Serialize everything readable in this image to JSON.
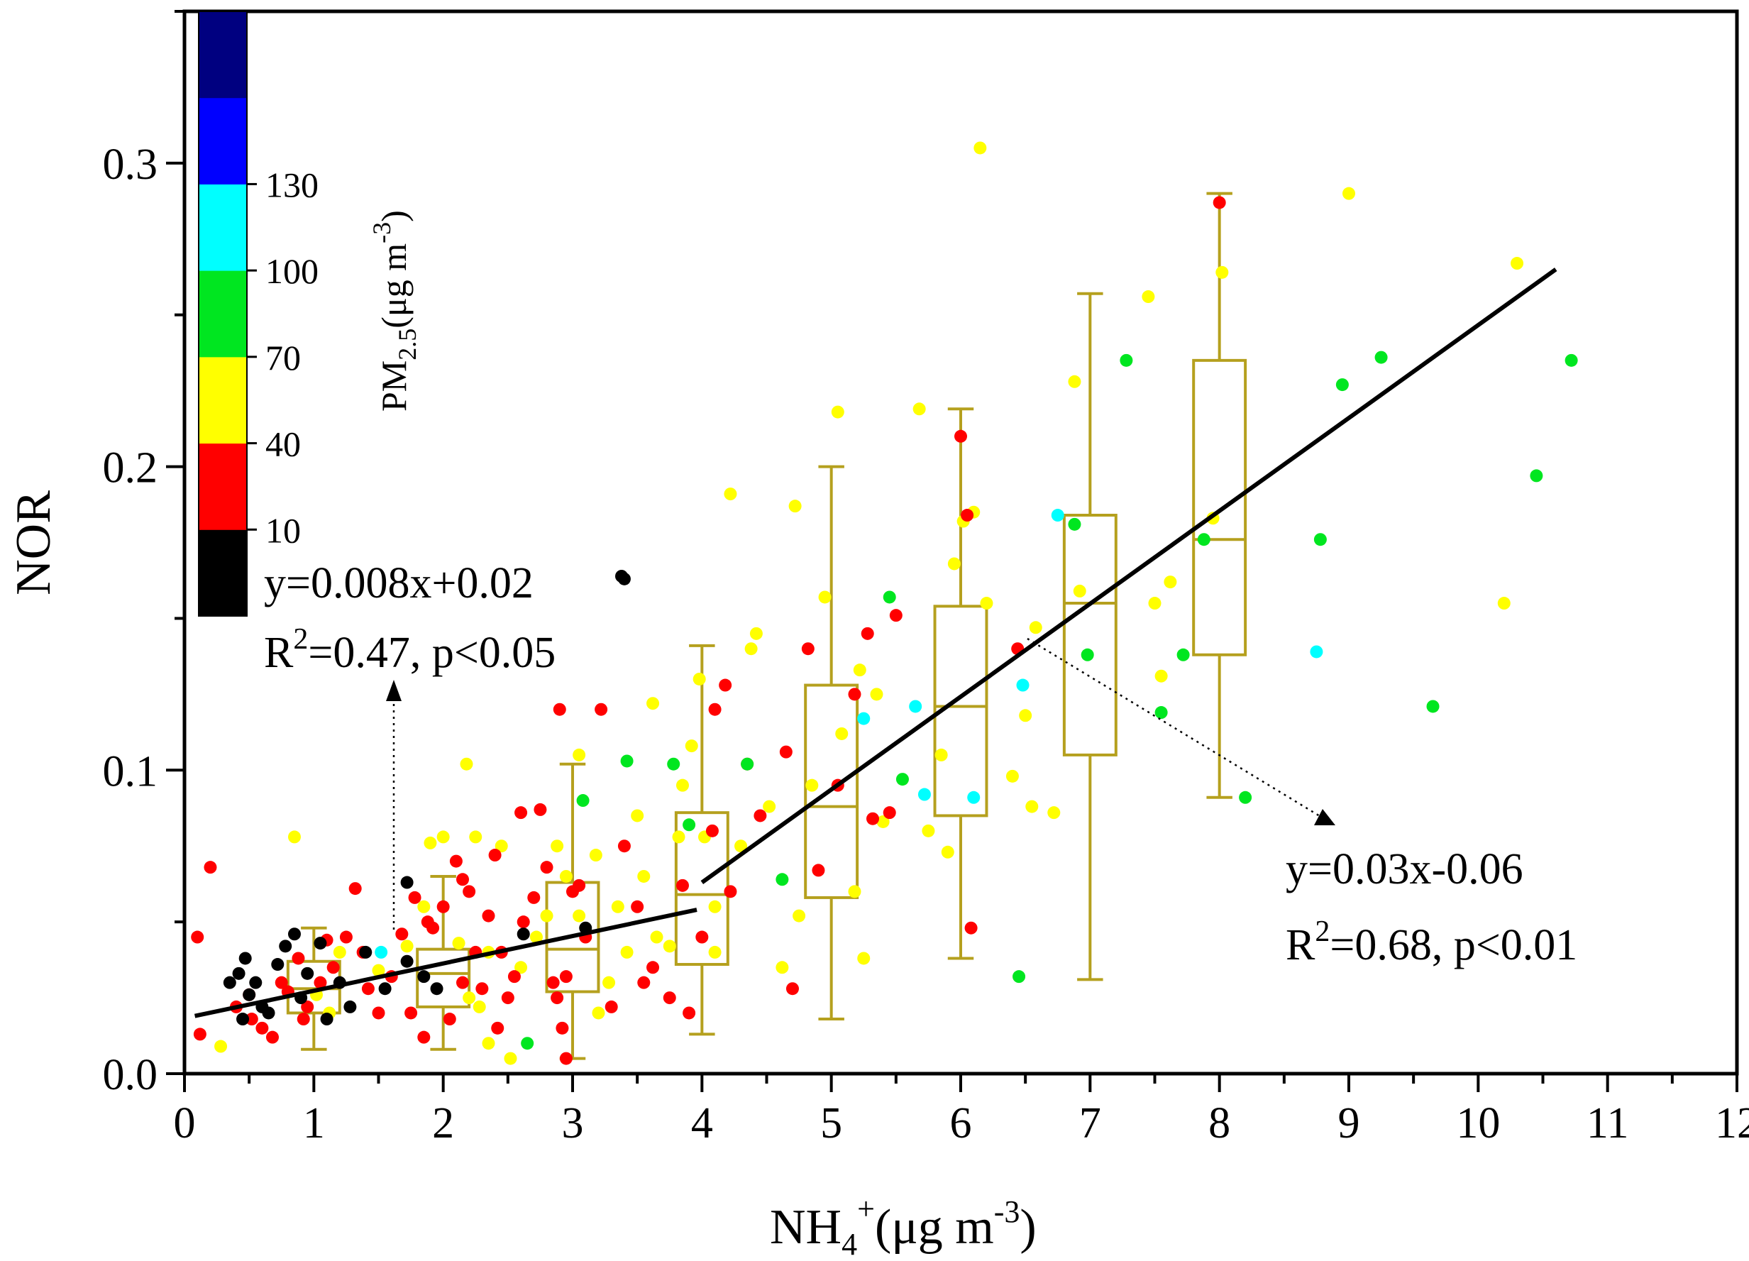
{
  "chart_data": {
    "type": "scatter",
    "xlabel": {
      "main": "NH",
      "sub": "4",
      "sup": "+",
      "unit": "(μg m",
      "unit_sup": "-3",
      "close": ")"
    },
    "ylabel": "NOR",
    "xlim": [
      0,
      12
    ],
    "ylim": [
      0,
      0.35
    ],
    "x_ticks": [
      0,
      1,
      2,
      3,
      4,
      5,
      6,
      7,
      8,
      9,
      10,
      11,
      12
    ],
    "x_tick_labels": [
      "0",
      "1",
      "2",
      "3",
      "4",
      "5",
      "6",
      "7",
      "8",
      "9",
      "10",
      "11",
      "12"
    ],
    "y_ticks": [
      0,
      0.1,
      0.2,
      0.3
    ],
    "y_tick_labels": [
      "0.0",
      "0.1",
      "0.2",
      "0.3"
    ],
    "colorbar": {
      "title_main": "PM",
      "title_sub": "2.5",
      "title_unit": "(μg m",
      "title_unit_sup": "-3",
      "title_close": ")",
      "labels": [
        "10",
        "40",
        "70",
        "100",
        "130"
      ],
      "bands": [
        {
          "color": "#000000"
        },
        {
          "color": "#ff0000"
        },
        {
          "color": "#ffff00"
        },
        {
          "color": "#00e620"
        },
        {
          "color": "#00ffff"
        },
        {
          "color": "#0000ff"
        },
        {
          "color": "#000080"
        }
      ]
    },
    "box_color": "#b5a01e",
    "boxes": [
      {
        "x": 1,
        "whisker_low": 0.008,
        "q1": 0.02,
        "median": 0.028,
        "q3": 0.037,
        "whisker_high": 0.048
      },
      {
        "x": 2,
        "whisker_low": 0.008,
        "q1": 0.022,
        "median": 0.033,
        "q3": 0.041,
        "whisker_high": 0.065
      },
      {
        "x": 3,
        "whisker_low": 0.005,
        "q1": 0.027,
        "median": 0.041,
        "q3": 0.063,
        "whisker_high": 0.102
      },
      {
        "x": 4,
        "whisker_low": 0.013,
        "q1": 0.036,
        "median": 0.059,
        "q3": 0.086,
        "whisker_high": 0.141
      },
      {
        "x": 5,
        "whisker_low": 0.018,
        "q1": 0.058,
        "median": 0.088,
        "q3": 0.128,
        "whisker_high": 0.2
      },
      {
        "x": 6,
        "whisker_low": 0.038,
        "q1": 0.085,
        "median": 0.121,
        "q3": 0.154,
        "whisker_high": 0.219
      },
      {
        "x": 7,
        "whisker_low": 0.031,
        "q1": 0.105,
        "median": 0.155,
        "q3": 0.184,
        "whisker_high": 0.257
      },
      {
        "x": 8,
        "whisker_low": 0.091,
        "q1": 0.138,
        "median": 0.176,
        "q3": 0.235,
        "whisker_high": 0.29
      }
    ],
    "fit_lines": [
      {
        "x": [
          0.08,
          3.96
        ],
        "y": [
          0.019,
          0.054
        ],
        "equation": "y=0.008x+0.02",
        "r2_prefix": "R",
        "r2_sup": "2",
        "r2_text": "=0.47, p<0.05"
      },
      {
        "x": [
          4.0,
          10.6
        ],
        "y": [
          0.063,
          0.265
        ],
        "equation": "y=0.03x-0.06",
        "r2_prefix": "R",
        "r2_sup": "2",
        "r2_text": "=0.68, p<0.01"
      }
    ],
    "points": {
      "black": [
        [
          0.35,
          0.03
        ],
        [
          0.42,
          0.033
        ],
        [
          0.47,
          0.038
        ],
        [
          0.5,
          0.026
        ],
        [
          0.45,
          0.018
        ],
        [
          0.55,
          0.03
        ],
        [
          0.6,
          0.022
        ],
        [
          0.72,
          0.036
        ],
        [
          0.78,
          0.042
        ],
        [
          0.85,
          0.046
        ],
        [
          0.9,
          0.025
        ],
        [
          1.05,
          0.043
        ],
        [
          1.1,
          0.018
        ],
        [
          1.2,
          0.03
        ],
        [
          1.28,
          0.022
        ],
        [
          1.4,
          0.04
        ],
        [
          1.55,
          0.028
        ],
        [
          1.72,
          0.037
        ],
        [
          1.85,
          0.032
        ],
        [
          1.95,
          0.028
        ],
        [
          1.72,
          0.063
        ],
        [
          2.62,
          0.046
        ],
        [
          3.1,
          0.048
        ],
        [
          0.65,
          0.02
        ],
        [
          0.95,
          0.033
        ]
      ],
      "red": [
        [
          0.1,
          0.045
        ],
        [
          0.2,
          0.068
        ],
        [
          0.12,
          0.013
        ],
        [
          0.4,
          0.022
        ],
        [
          0.52,
          0.018
        ],
        [
          0.6,
          0.015
        ],
        [
          0.68,
          0.012
        ],
        [
          0.8,
          0.027
        ],
        [
          0.88,
          0.038
        ],
        [
          0.95,
          0.022
        ],
        [
          1.05,
          0.03
        ],
        [
          1.15,
          0.035
        ],
        [
          1.25,
          0.045
        ],
        [
          1.32,
          0.061
        ],
        [
          1.42,
          0.028
        ],
        [
          1.5,
          0.02
        ],
        [
          1.6,
          0.032
        ],
        [
          1.68,
          0.046
        ],
        [
          1.75,
          0.02
        ],
        [
          1.78,
          0.058
        ],
        [
          1.85,
          0.012
        ],
        [
          1.92,
          0.048
        ],
        [
          2.0,
          0.055
        ],
        [
          2.05,
          0.018
        ],
        [
          2.1,
          0.07
        ],
        [
          2.15,
          0.064
        ],
        [
          2.2,
          0.06
        ],
        [
          2.25,
          0.04
        ],
        [
          2.3,
          0.028
        ],
        [
          2.35,
          0.052
        ],
        [
          2.4,
          0.072
        ],
        [
          2.42,
          0.015
        ],
        [
          2.5,
          0.025
        ],
        [
          2.55,
          0.032
        ],
        [
          2.6,
          0.086
        ],
        [
          2.62,
          0.05
        ],
        [
          2.7,
          0.058
        ],
        [
          2.75,
          0.087
        ],
        [
          2.8,
          0.068
        ],
        [
          2.85,
          0.03
        ],
        [
          2.88,
          0.025
        ],
        [
          2.9,
          0.12
        ],
        [
          2.92,
          0.015
        ],
        [
          2.95,
          0.032
        ],
        [
          3.05,
          0.062
        ],
        [
          3.1,
          0.045
        ],
        [
          3.22,
          0.12
        ],
        [
          3.3,
          0.022
        ],
        [
          3.4,
          0.075
        ],
        [
          3.5,
          0.055
        ],
        [
          3.55,
          0.03
        ],
        [
          3.62,
          0.035
        ],
        [
          3.75,
          0.025
        ],
        [
          3.85,
          0.062
        ],
        [
          3.9,
          0.02
        ],
        [
          4.0,
          0.045
        ],
        [
          4.08,
          0.08
        ],
        [
          4.1,
          0.12
        ],
        [
          4.18,
          0.128
        ],
        [
          4.22,
          0.06
        ],
        [
          4.35,
          0.102
        ],
        [
          4.45,
          0.085
        ],
        [
          4.65,
          0.106
        ],
        [
          4.7,
          0.028
        ],
        [
          4.82,
          0.14
        ],
        [
          4.9,
          0.067
        ],
        [
          5.05,
          0.095
        ],
        [
          5.18,
          0.125
        ],
        [
          5.28,
          0.145
        ],
        [
          5.32,
          0.084
        ],
        [
          5.45,
          0.086
        ],
        [
          5.5,
          0.151
        ],
        [
          6.0,
          0.21
        ],
        [
          6.05,
          0.184
        ],
        [
          6.08,
          0.048
        ],
        [
          6.44,
          0.14
        ],
        [
          8.0,
          0.287
        ],
        [
          0.92,
          0.018
        ],
        [
          1.88,
          0.05
        ],
        [
          2.15,
          0.03
        ],
        [
          2.45,
          0.04
        ],
        [
          3.0,
          0.06
        ],
        [
          2.95,
          0.005
        ],
        [
          0.5,
          0.026
        ],
        [
          0.75,
          0.03
        ],
        [
          1.1,
          0.044
        ],
        [
          1.38,
          0.04
        ]
      ],
      "yellow": [
        [
          0.28,
          0.009
        ],
        [
          0.85,
          0.078
        ],
        [
          1.2,
          0.04
        ],
        [
          1.5,
          0.034
        ],
        [
          1.72,
          0.042
        ],
        [
          1.85,
          0.055
        ],
        [
          1.9,
          0.076
        ],
        [
          2.0,
          0.078
        ],
        [
          2.12,
          0.043
        ],
        [
          2.18,
          0.102
        ],
        [
          2.25,
          0.078
        ],
        [
          2.28,
          0.022
        ],
        [
          2.35,
          0.04
        ],
        [
          2.45,
          0.075
        ],
        [
          2.52,
          0.005
        ],
        [
          2.6,
          0.035
        ],
        [
          2.72,
          0.045
        ],
        [
          2.8,
          0.052
        ],
        [
          2.88,
          0.075
        ],
        [
          2.95,
          0.065
        ],
        [
          3.05,
          0.052
        ],
        [
          3.05,
          0.105
        ],
        [
          3.18,
          0.072
        ],
        [
          3.28,
          0.03
        ],
        [
          3.35,
          0.055
        ],
        [
          3.42,
          0.04
        ],
        [
          3.5,
          0.085
        ],
        [
          3.55,
          0.065
        ],
        [
          3.62,
          0.122
        ],
        [
          3.65,
          0.045
        ],
        [
          3.75,
          0.042
        ],
        [
          3.82,
          0.078
        ],
        [
          3.85,
          0.095
        ],
        [
          3.92,
          0.108
        ],
        [
          3.98,
          0.13
        ],
        [
          4.02,
          0.078
        ],
        [
          4.1,
          0.055
        ],
        [
          4.22,
          0.191
        ],
        [
          4.3,
          0.075
        ],
        [
          4.38,
          0.14
        ],
        [
          4.42,
          0.145
        ],
        [
          4.52,
          0.088
        ],
        [
          4.62,
          0.035
        ],
        [
          4.72,
          0.187
        ],
        [
          4.75,
          0.052
        ],
        [
          4.85,
          0.095
        ],
        [
          4.95,
          0.157
        ],
        [
          5.05,
          0.218
        ],
        [
          5.08,
          0.112
        ],
        [
          5.18,
          0.06
        ],
        [
          5.22,
          0.133
        ],
        [
          5.25,
          0.038
        ],
        [
          5.35,
          0.125
        ],
        [
          5.4,
          0.083
        ],
        [
          5.68,
          0.219
        ],
        [
          5.75,
          0.08
        ],
        [
          5.85,
          0.105
        ],
        [
          5.9,
          0.073
        ],
        [
          5.95,
          0.168
        ],
        [
          6.02,
          0.182
        ],
        [
          6.1,
          0.185
        ],
        [
          6.15,
          0.305
        ],
        [
          6.2,
          0.155
        ],
        [
          6.4,
          0.098
        ],
        [
          6.5,
          0.118
        ],
        [
          6.55,
          0.088
        ],
        [
          6.58,
          0.147
        ],
        [
          6.72,
          0.086
        ],
        [
          6.88,
          0.228
        ],
        [
          6.92,
          0.159
        ],
        [
          7.45,
          0.256
        ],
        [
          7.5,
          0.155
        ],
        [
          7.55,
          0.131
        ],
        [
          7.62,
          0.162
        ],
        [
          7.95,
          0.183
        ],
        [
          8.02,
          0.264
        ],
        [
          9.0,
          0.29
        ],
        [
          10.2,
          0.155
        ],
        [
          10.3,
          0.267
        ],
        [
          1.02,
          0.026
        ],
        [
          1.12,
          0.02
        ],
        [
          2.35,
          0.01
        ],
        [
          3.2,
          0.02
        ],
        [
          4.1,
          0.04
        ],
        [
          2.2,
          0.025
        ]
      ],
      "green": [
        [
          2.65,
          0.01
        ],
        [
          3.08,
          0.09
        ],
        [
          3.42,
          0.103
        ],
        [
          3.78,
          0.102
        ],
        [
          3.9,
          0.082
        ],
        [
          4.35,
          0.102
        ],
        [
          4.62,
          0.064
        ],
        [
          5.45,
          0.157
        ],
        [
          5.55,
          0.097
        ],
        [
          6.45,
          0.032
        ],
        [
          6.88,
          0.181
        ],
        [
          6.98,
          0.138
        ],
        [
          7.28,
          0.235
        ],
        [
          7.55,
          0.119
        ],
        [
          7.72,
          0.138
        ],
        [
          7.88,
          0.176
        ],
        [
          8.2,
          0.091
        ],
        [
          8.78,
          0.176
        ],
        [
          8.95,
          0.227
        ],
        [
          9.25,
          0.236
        ],
        [
          9.65,
          0.121
        ],
        [
          10.45,
          0.197
        ],
        [
          10.72,
          0.235
        ]
      ],
      "cyan": [
        [
          1.52,
          0.04
        ],
        [
          5.25,
          0.117
        ],
        [
          5.65,
          0.121
        ],
        [
          5.72,
          0.092
        ],
        [
          6.1,
          0.091
        ],
        [
          6.48,
          0.128
        ],
        [
          6.75,
          0.184
        ],
        [
          8.75,
          0.139
        ]
      ],
      "outlier_black": [
        [
          3.4,
          0.163
        ]
      ]
    }
  }
}
